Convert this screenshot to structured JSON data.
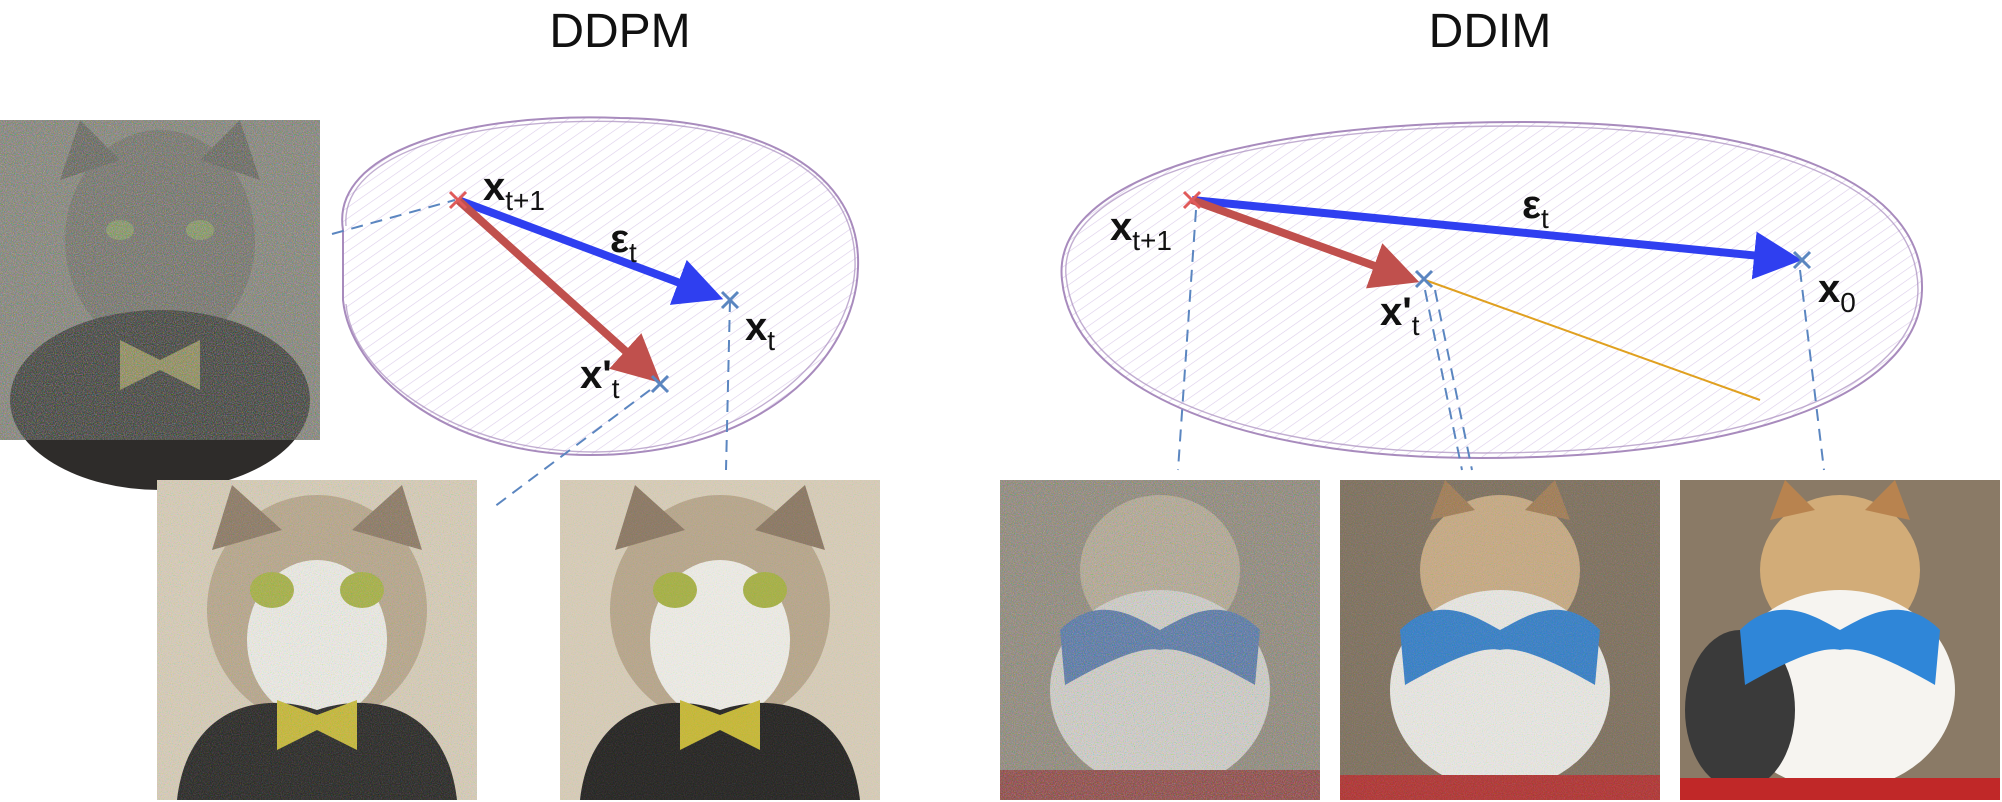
{
  "panels": {
    "ddpm": {
      "title": "DDPM",
      "points": {
        "x_t_plus_1": "x",
        "x_t_plus_1_sub": "t+1",
        "x_t": "x",
        "x_t_sub": "t",
        "x_prime_t": "x'",
        "x_prime_t_sub": "t"
      },
      "arrow_labels": {
        "eps": "ε",
        "eps_sub": "t"
      },
      "images": [
        "noisy-cat",
        "cat-bowtie-noisy-a",
        "cat-bowtie-noisy-b"
      ]
    },
    "ddim": {
      "title": "DDIM",
      "points": {
        "x_t_plus_1": "x",
        "x_t_plus_1_sub": "t+1",
        "x_prime_t": "x'",
        "x_prime_t_sub": "t",
        "x_0": "x",
        "x_0_sub": "0"
      },
      "arrow_labels": {
        "eps": "ε",
        "eps_sub": "t"
      },
      "images": [
        "fluffy-cat-noisy",
        "fluffy-cat-less-noisy",
        "fluffy-cat-clean"
      ]
    }
  },
  "colors": {
    "manifold_stroke": "#a88bbd",
    "manifold_hatch": "#d9c9e6",
    "eps_arrow": "#2f3ff0",
    "pred_arrow": "#c0504d",
    "start_marker": "#e05a5a",
    "point_marker": "#5b86c0",
    "dash_line": "#5b86c0",
    "orange_line": "#e0a020"
  }
}
